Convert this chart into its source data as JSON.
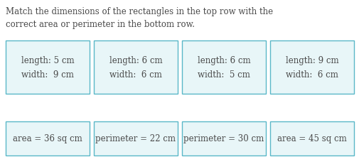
{
  "title_line1": "Match the dimensions of the rectangles in the top row with the",
  "title_line2": "correct area or perimeter in the bottom row.",
  "top_boxes": [
    "length: 5 cm\nwidth:  9 cm",
    "length: 6 cm\nwidth:  6 cm",
    "length: 6 cm\nwidth:  5 cm",
    "length: 9 cm\nwidth:  6 cm"
  ],
  "bottom_boxes": [
    "area = 36 sq cm",
    "perimeter = 22 cm",
    "perimeter = 30 cm",
    "area = 45 sq cm"
  ],
  "box_facecolor": "#e8f6f8",
  "box_edgecolor": "#5ab8c8",
  "text_color": "#4a4a4a",
  "bg_color": "#ffffff",
  "font_size": 8.5,
  "title_font_size": 8.5,
  "fig_width": 5.06,
  "fig_height": 2.32,
  "dpi": 100
}
